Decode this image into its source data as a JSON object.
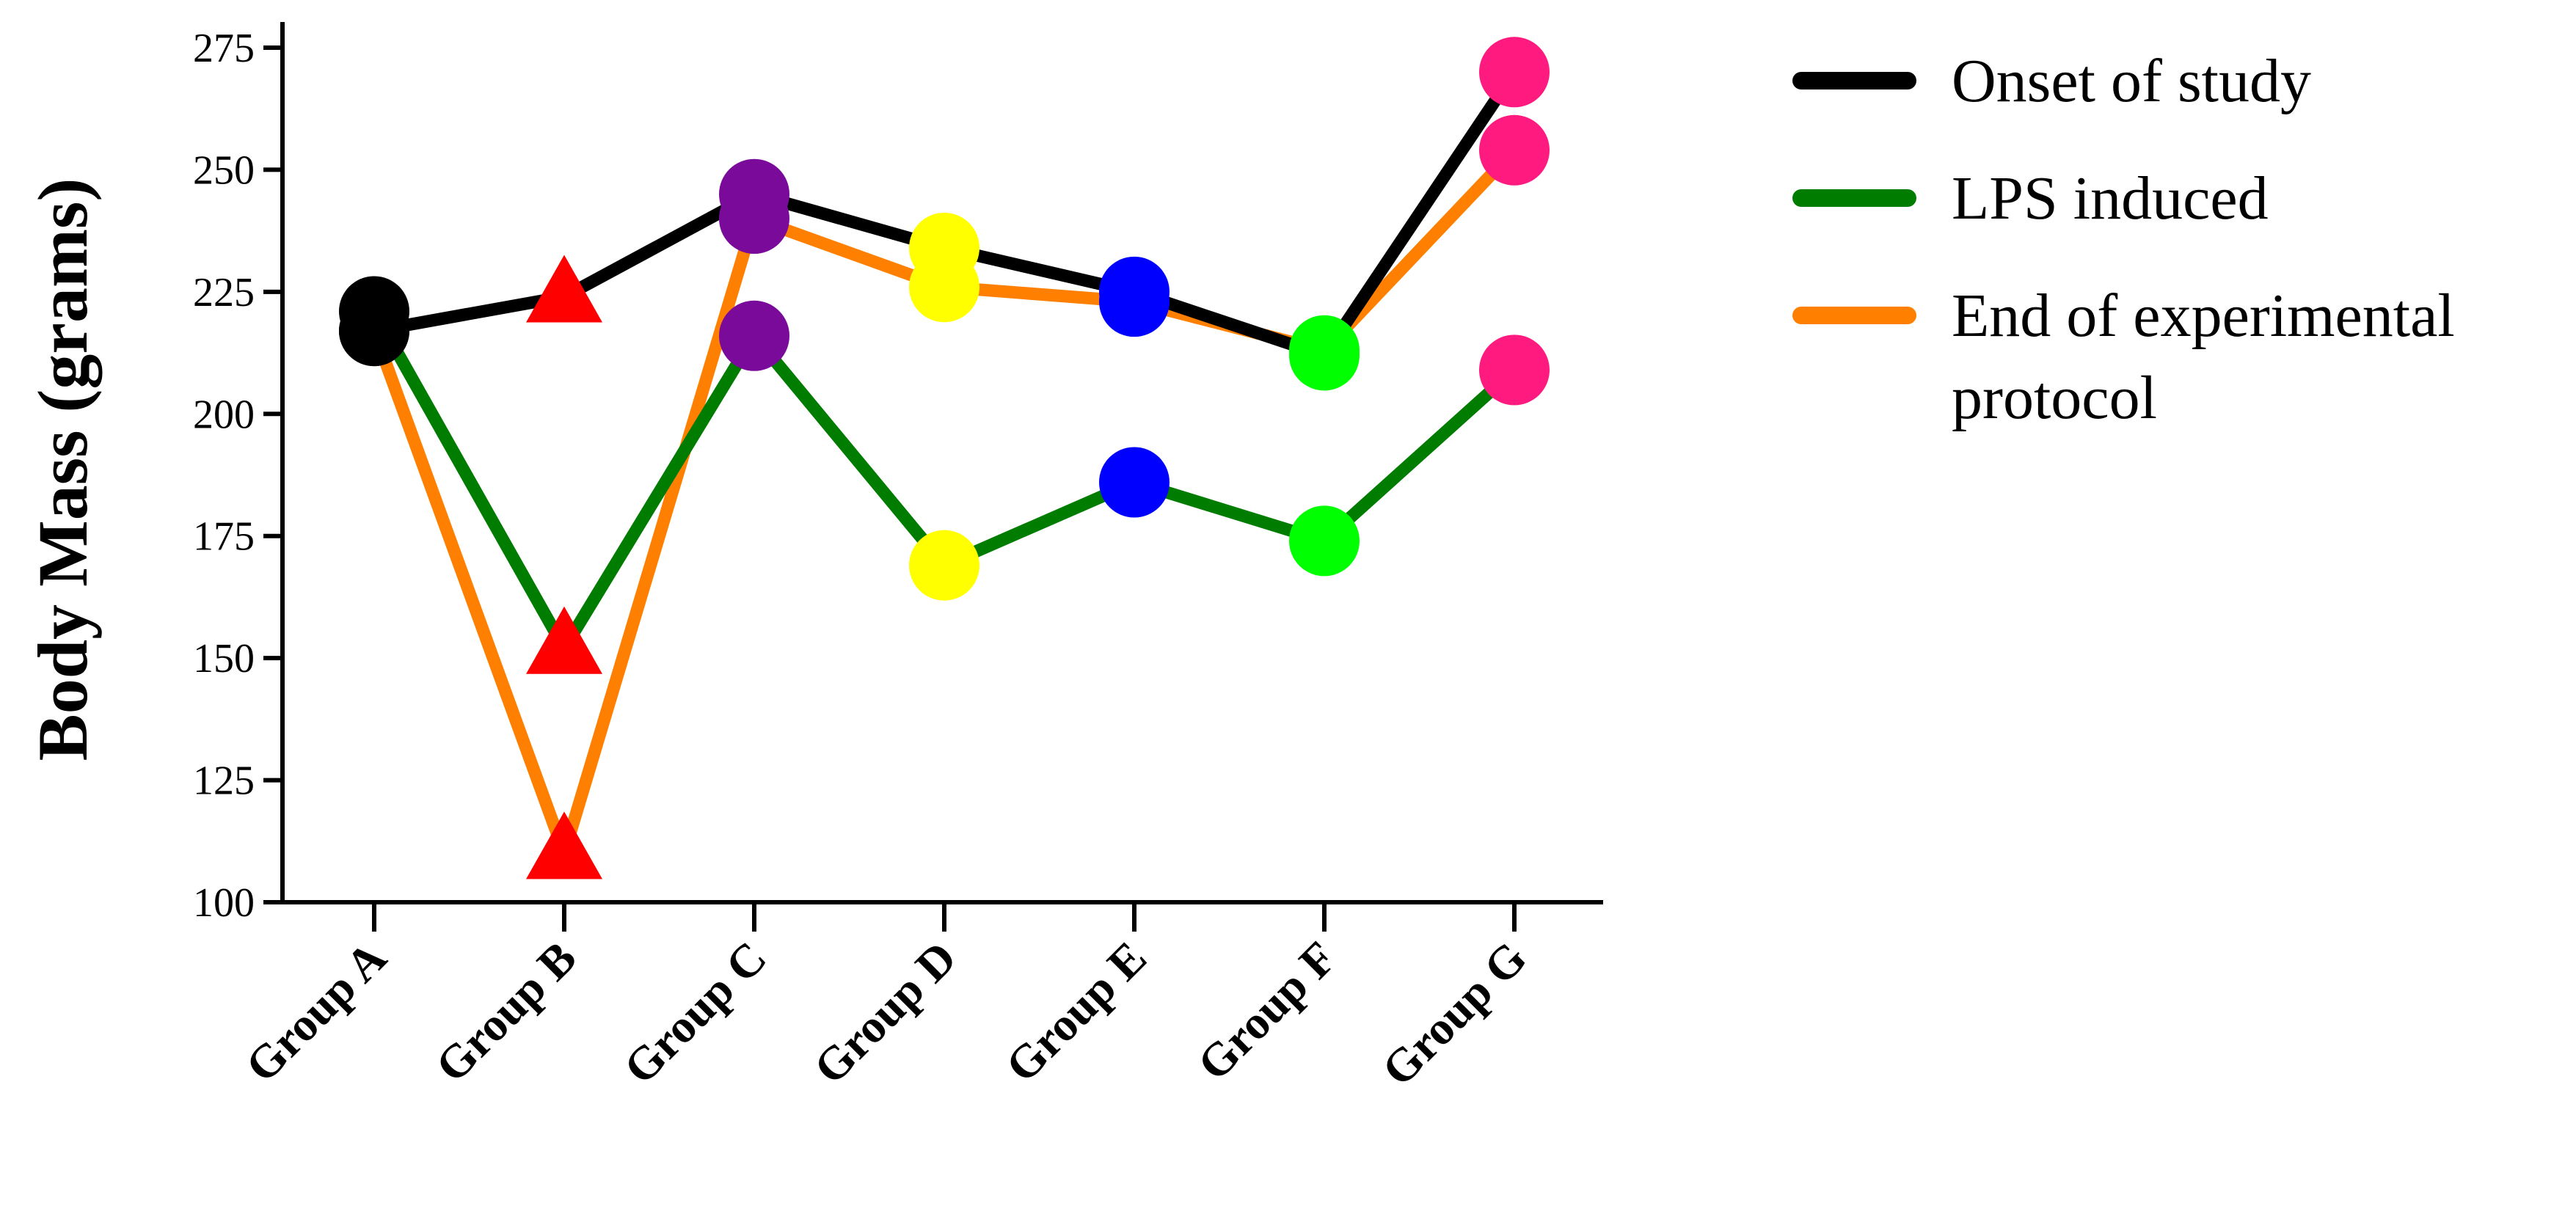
{
  "chart_data": {
    "type": "line",
    "title": "",
    "xlabel": "",
    "ylabel": "Body Mass (grams)",
    "ylim": [
      100,
      280
    ],
    "yticks": [
      100,
      125,
      150,
      175,
      200,
      225,
      250,
      275
    ],
    "categories": [
      "Group A",
      "Group B",
      "Group C",
      "Group D",
      "Group E",
      "Group F",
      "Group G"
    ],
    "group_marker_colors": [
      "#000000",
      "#ff0000",
      "#7a0b9a",
      "#ffff00",
      "#0000ff",
      "#00ff00",
      "#ff1a80"
    ],
    "group_marker_shapes": [
      "circle",
      "triangle",
      "circle",
      "circle",
      "circle",
      "circle",
      "circle"
    ],
    "series": [
      {
        "name": "Onset of study",
        "color": "#000000",
        "values": [
          217,
          224,
          245,
          234,
          225,
          212,
          270
        ]
      },
      {
        "name": "LPS induced",
        "color": "#007d00",
        "values": [
          221,
          152,
          216,
          169,
          186,
          174,
          209
        ]
      },
      {
        "name": "End of experimental protocol",
        "color": "#ff8000",
        "values": [
          217,
          110,
          240,
          226,
          223,
          213,
          254
        ]
      }
    ],
    "legend": {
      "position": "right",
      "entries": [
        {
          "lines": [
            "Onset of study"
          ],
          "color": "#000000"
        },
        {
          "lines": [
            "LPS induced"
          ],
          "color": "#007d00"
        },
        {
          "lines": [
            "End of experimental",
            "protocol"
          ],
          "color": "#ff8000"
        }
      ]
    }
  }
}
